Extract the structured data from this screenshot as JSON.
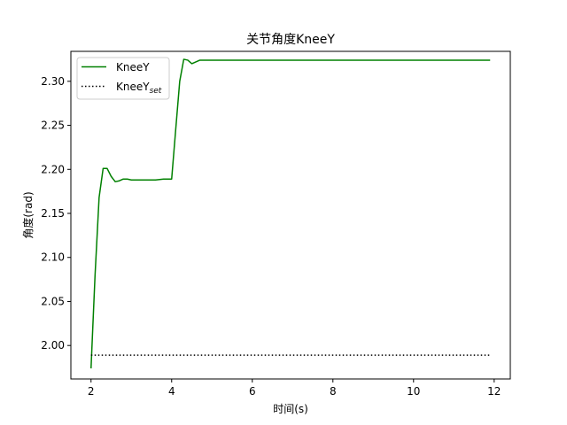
{
  "chart_data": {
    "type": "line",
    "title": "关节角度KneeY",
    "xlabel": "时间(s)",
    "ylabel": "角度(rad)",
    "xlim": [
      1.5,
      12.4
    ],
    "ylim": [
      1.962,
      2.334
    ],
    "xticks": [
      2,
      4,
      6,
      8,
      10,
      12
    ],
    "yticks": [
      2.0,
      2.05,
      2.1,
      2.15,
      2.2,
      2.25,
      2.3
    ],
    "xtick_labels": [
      "2",
      "4",
      "6",
      "8",
      "10",
      "12"
    ],
    "ytick_labels": [
      "2.00",
      "2.05",
      "2.10",
      "2.15",
      "2.20",
      "2.25",
      "2.30"
    ],
    "grid": false,
    "legend_position": "top-left",
    "legend": [
      {
        "label": "KneeY",
        "subscript": "",
        "style": "solid",
        "color": "#008000"
      },
      {
        "label": "KneeY",
        "subscript": "set",
        "style": "dotted",
        "color": "#000000"
      }
    ],
    "series": [
      {
        "color": "#008000",
        "style": "solid",
        "x": [
          2.0,
          2.1,
          2.2,
          2.3,
          2.4,
          2.5,
          2.6,
          2.7,
          2.8,
          2.9,
          3.0,
          3.2,
          3.4,
          3.6,
          3.8,
          4.0,
          4.1,
          4.2,
          4.3,
          4.4,
          4.5,
          4.6,
          4.7,
          5.0,
          5.5,
          6.0,
          6.5,
          7.0,
          7.5,
          8.0,
          8.5,
          9.0,
          9.5,
          10.0,
          10.5,
          11.0,
          11.5,
          11.9
        ],
        "y": [
          1.974,
          2.08,
          2.168,
          2.201,
          2.201,
          2.192,
          2.186,
          2.187,
          2.189,
          2.189,
          2.188,
          2.188,
          2.188,
          2.188,
          2.189,
          2.189,
          2.245,
          2.3,
          2.325,
          2.324,
          2.32,
          2.322,
          2.324,
          2.324,
          2.324,
          2.324,
          2.324,
          2.324,
          2.324,
          2.324,
          2.324,
          2.324,
          2.324,
          2.324,
          2.324,
          2.324,
          2.324,
          2.324
        ]
      },
      {
        "color": "#000000",
        "style": "dotted",
        "x": [
          2.0,
          11.9
        ],
        "y": [
          1.989,
          1.989
        ]
      }
    ]
  }
}
